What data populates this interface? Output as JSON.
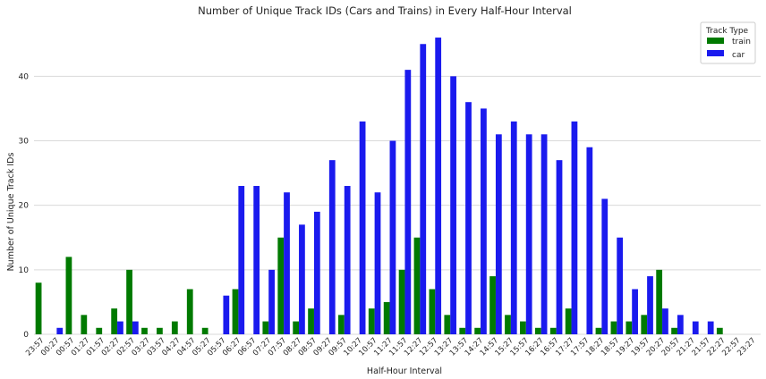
{
  "chart_data": {
    "type": "bar",
    "title": "Number of Unique Track IDs (Cars and Trains) in Every Half-Hour Interval",
    "xlabel": "Half-Hour Interval",
    "ylabel": "Number of Unique Track IDs",
    "ylim": [
      0,
      48.5
    ],
    "yticks": [
      0,
      10,
      20,
      30,
      40
    ],
    "grid": "horizontal",
    "legend": {
      "title": "Track Type",
      "placement": "top-right"
    },
    "categories": [
      "23:57",
      "00:27",
      "00:57",
      "01:27",
      "01:57",
      "02:27",
      "02:57",
      "03:27",
      "03:57",
      "04:27",
      "04:57",
      "05:27",
      "05:57",
      "06:27",
      "06:57",
      "07:27",
      "07:57",
      "08:27",
      "08:57",
      "09:27",
      "09:57",
      "10:27",
      "10:57",
      "11:27",
      "11:57",
      "12:27",
      "12:57",
      "13:27",
      "13:57",
      "14:27",
      "14:57",
      "15:27",
      "15:57",
      "16:27",
      "16:57",
      "17:27",
      "17:57",
      "18:27",
      "18:57",
      "19:27",
      "19:57",
      "20:27",
      "20:57",
      "21:27",
      "21:57",
      "22:27",
      "22:57",
      "23:27"
    ],
    "series": [
      {
        "name": "train",
        "color": "#007a00",
        "values": [
          8,
          0,
          12,
          3,
          1,
          4,
          10,
          1,
          1,
          2,
          7,
          1,
          0,
          7,
          0,
          2,
          15,
          2,
          4,
          0,
          3,
          0,
          4,
          5,
          10,
          15,
          7,
          3,
          1,
          1,
          9,
          3,
          2,
          1,
          1,
          4,
          0,
          1,
          2,
          2,
          3,
          10,
          1,
          0,
          0,
          1,
          0,
          0
        ]
      },
      {
        "name": "car",
        "color": "#1a1aee",
        "values": [
          0,
          1,
          0,
          0,
          0,
          2,
          2,
          0,
          0,
          0,
          0,
          0,
          6,
          23,
          23,
          10,
          22,
          17,
          19,
          27,
          23,
          33,
          22,
          30,
          41,
          45,
          46,
          40,
          36,
          35,
          31,
          33,
          31,
          31,
          27,
          33,
          29,
          21,
          15,
          7,
          9,
          4,
          3,
          2,
          2,
          0,
          0,
          0
        ]
      }
    ]
  }
}
